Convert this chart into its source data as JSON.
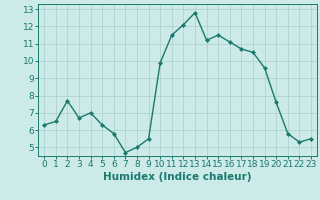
{
  "x": [
    0,
    1,
    2,
    3,
    4,
    5,
    6,
    7,
    8,
    9,
    10,
    11,
    12,
    13,
    14,
    15,
    16,
    17,
    18,
    19,
    20,
    21,
    22,
    23
  ],
  "y": [
    6.3,
    6.5,
    7.7,
    6.7,
    7.0,
    6.3,
    5.8,
    4.7,
    5.0,
    5.5,
    9.9,
    11.5,
    12.1,
    12.8,
    11.2,
    11.5,
    11.1,
    10.7,
    10.5,
    9.6,
    7.6,
    5.8,
    5.3,
    5.5
  ],
  "line_color": "#1a7a6e",
  "marker": "D",
  "marker_size": 2.0,
  "bg_color": "#cceae7",
  "grid_color": "#aacfcb",
  "xlabel": "Humidex (Indice chaleur)",
  "ylim": [
    4.5,
    13.3
  ],
  "xlim": [
    -0.5,
    23.5
  ],
  "yticks": [
    5,
    6,
    7,
    8,
    9,
    10,
    11,
    12,
    13
  ],
  "xticks": [
    0,
    1,
    2,
    3,
    4,
    5,
    6,
    7,
    8,
    9,
    10,
    11,
    12,
    13,
    14,
    15,
    16,
    17,
    18,
    19,
    20,
    21,
    22,
    23
  ],
  "tick_label_fontsize": 6.5,
  "xlabel_fontsize": 7.5,
  "line_width": 1.0
}
